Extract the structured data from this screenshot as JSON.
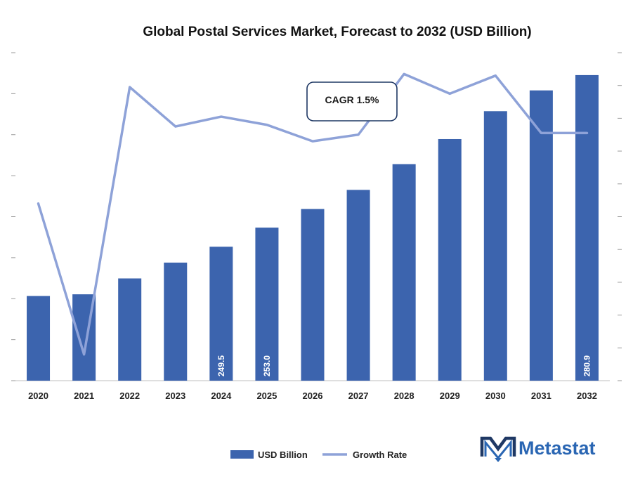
{
  "chart_data": {
    "type": "bar",
    "title": "Global Postal Services Market, Forecast to 2032 (USD Billion)",
    "categories": [
      "2020",
      "2021",
      "2022",
      "2023",
      "2024",
      "2025",
      "2026",
      "2027",
      "2028",
      "2029",
      "2030",
      "2031",
      "2032"
    ],
    "series": [
      {
        "name": "USD Billion",
        "type": "bar",
        "color": "#3c64ae",
        "values": [
          240.5,
          240.8,
          243.7,
          246.6,
          249.5,
          253.0,
          256.4,
          259.9,
          264.6,
          269.2,
          274.3,
          278.1,
          280.9
        ],
        "data_labels": {
          "2024": "249.5",
          "2025": "253.0",
          "2032": "280.9"
        }
      },
      {
        "name": "Growth Rate",
        "type": "line",
        "color": "#8ea2d8",
        "values": [
          1.08,
          0.16,
          1.79,
          1.55,
          1.61,
          1.56,
          1.46,
          1.5,
          1.87,
          1.75,
          1.86,
          1.51,
          1.51
        ]
      }
    ],
    "ylim_left": [
      225,
      285
    ],
    "ylim_right": [
      0,
      2
    ],
    "legend": "bottom-center",
    "grid": false,
    "annotation": "CAGR 1.5%"
  },
  "logo": {
    "text": "Metastat"
  }
}
